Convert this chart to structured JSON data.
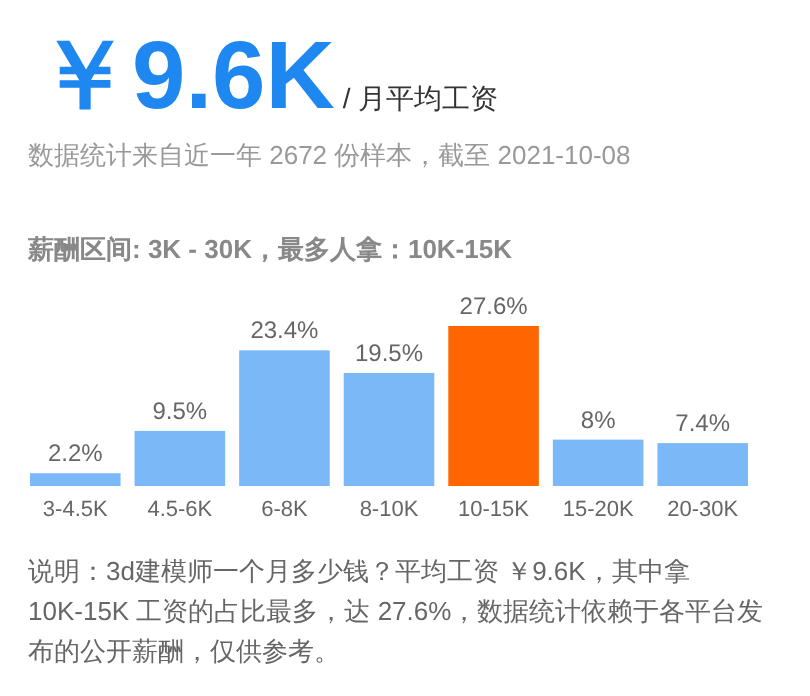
{
  "chart_data": {
    "type": "bar",
    "title": "￥9.6K",
    "subtitle": "/ 月平均工资",
    "annotations": [
      "数据统计来自近一年 2672 份样本，截至 2021-10-08",
      "薪酬区间: 3K - 30K，最多人拿：10K-15K",
      "说明：3d建模师一个月多少钱？平均工资 ￥9.6K，其中拿 10K-15K 工资的占比最多，达 27.6%，数据统计依赖于各平台发布的公开薪酬，仅供参考。"
    ],
    "categories": [
      "3-4.5K",
      "4.5-6K",
      "6-8K",
      "8-10K",
      "10-15K",
      "15-20K",
      "20-30K"
    ],
    "values": [
      2.2,
      9.5,
      23.4,
      19.5,
      27.6,
      8,
      7.4
    ],
    "value_labels": [
      "2.2%",
      "9.5%",
      "23.4%",
      "19.5%",
      "27.6%",
      "8%",
      "7.4%"
    ],
    "colors": [
      "#7ab8f7",
      "#7ab8f7",
      "#7ab8f7",
      "#7ab8f7",
      "#ff6600",
      "#7ab8f7",
      "#7ab8f7"
    ]
  }
}
